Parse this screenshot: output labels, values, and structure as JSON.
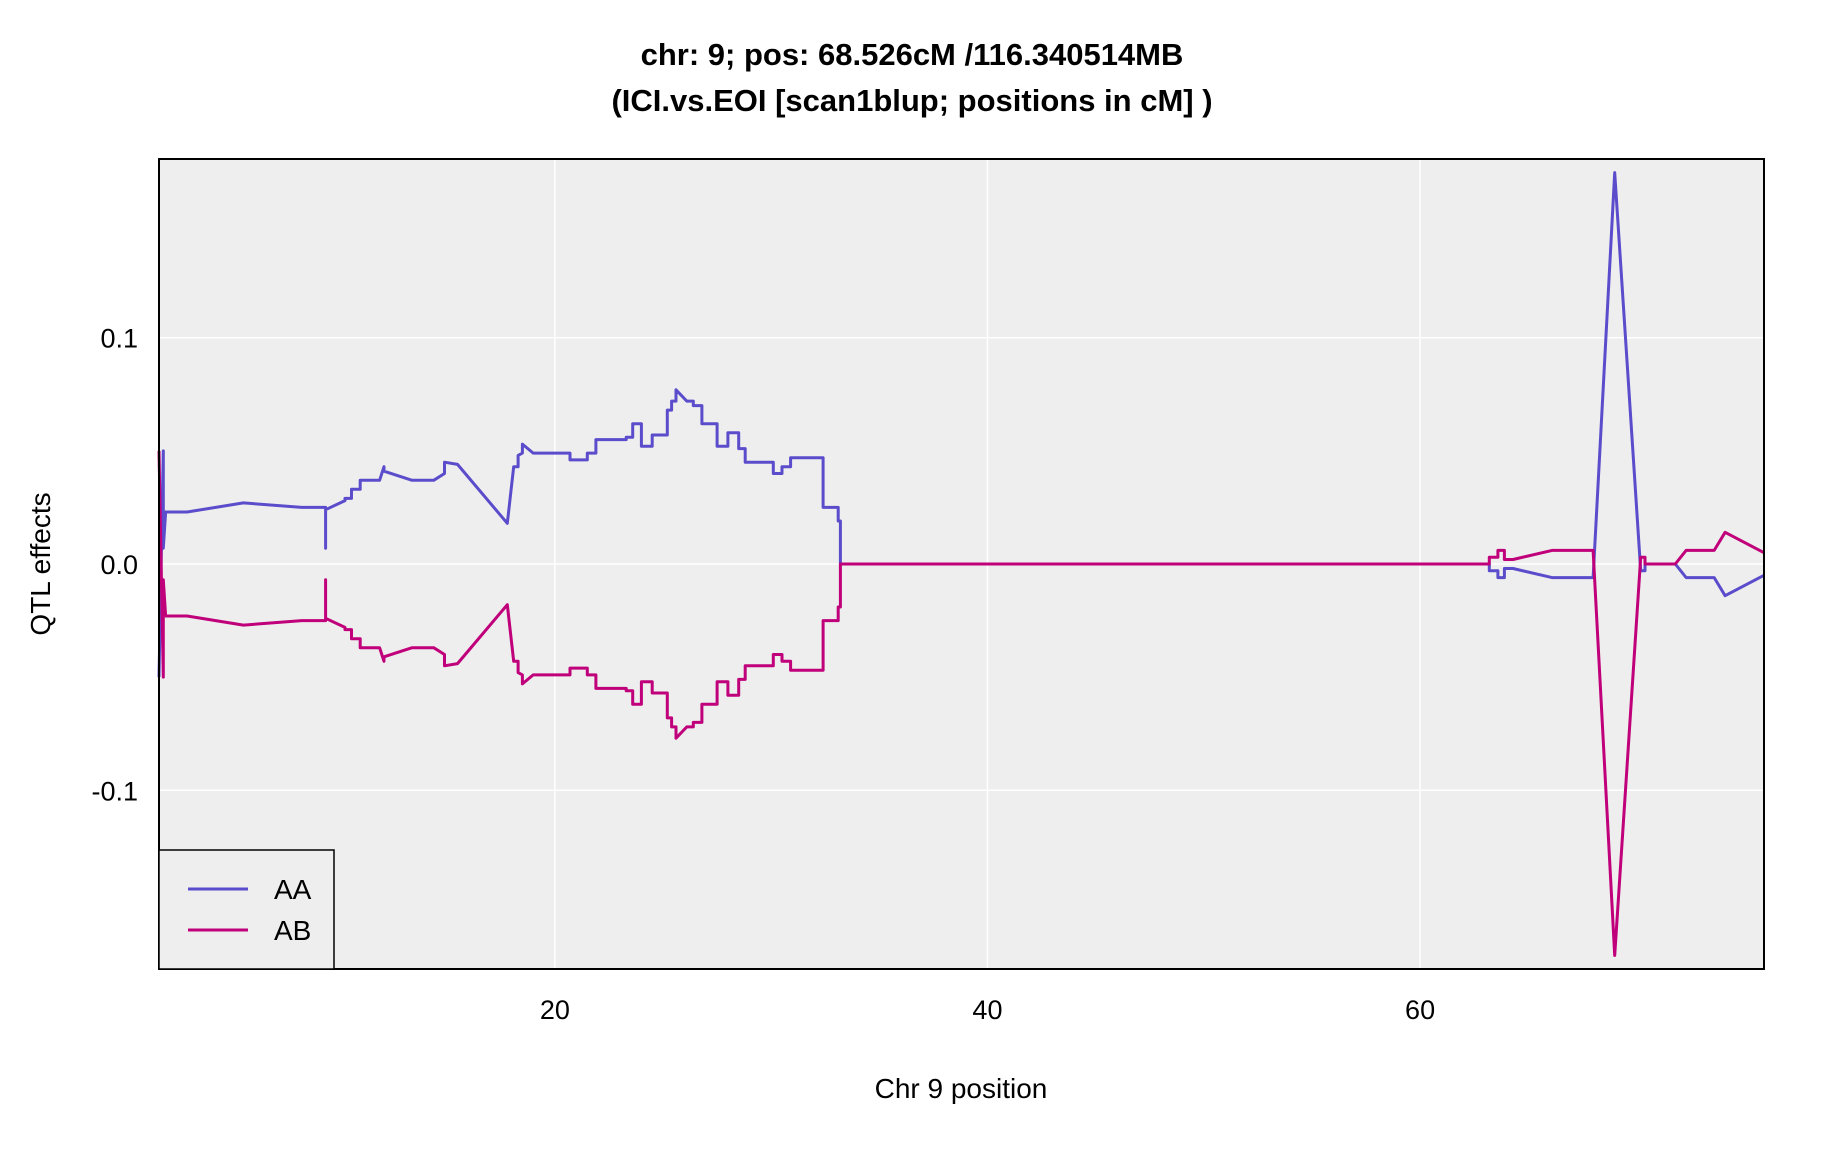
{
  "chart_data": {
    "type": "line",
    "title_line1": "chr: 9; pos: 68.526cM /116.340514MB",
    "title_line2": "(ICI.vs.EOI [scan1blup; positions in cM] )",
    "xlabel": "Chr 9 position",
    "ylabel": "QTL effects",
    "xlim": [
      1.7,
      75.9
    ],
    "ylim": [
      -0.179,
      0.179
    ],
    "x_ticks": [
      20,
      40,
      60
    ],
    "y_ticks": [
      -0.1,
      0.0,
      0.1
    ],
    "x_tick_labels": [
      "20",
      "40",
      "60"
    ],
    "y_tick_labels": [
      "-0.1",
      "0.0",
      "0.1"
    ],
    "grid": true,
    "background_color": "#eeeeee",
    "legend_position": "bottom-left",
    "series": [
      {
        "name": "AA",
        "color": "#5b4ccc",
        "x": [
          1.7,
          1.9,
          1.9,
          2.0,
          2.0,
          3.0,
          5.6,
          8.3,
          9.4,
          9.4,
          9.4,
          10.3,
          10.3,
          10.6,
          10.6,
          11.0,
          11.0,
          11.6,
          11.9,
          12.1,
          12.1,
          13.4,
          14.4,
          14.9,
          14.9,
          15.5,
          17.8,
          18.1,
          18.3,
          18.3,
          18.5,
          18.5,
          19.0,
          20.7,
          20.7,
          21.5,
          21.5,
          21.9,
          21.9,
          23.3,
          23.3,
          23.6,
          23.6,
          24.0,
          24.0,
          24.5,
          24.5,
          25.2,
          25.2,
          25.4,
          25.4,
          25.6,
          25.6,
          26.1,
          26.4,
          26.4,
          26.8,
          26.8,
          27.5,
          27.5,
          28.0,
          28.0,
          28.5,
          28.5,
          28.8,
          28.8,
          30.1,
          30.1,
          30.5,
          30.5,
          30.9,
          30.9,
          32.4,
          32.4,
          32.5,
          32.5,
          33.1,
          33.1,
          33.2,
          33.2,
          33.3,
          63.2,
          63.2,
          63.6,
          63.6,
          63.9,
          63.9,
          64.3,
          66.1,
          68.0,
          69.0,
          70.2,
          70.4,
          70.4,
          70.9,
          70.9,
          71.8,
          72.3,
          73.6,
          74.1,
          75.9
        ],
        "y": [
          -0.05,
          0.05,
          0.007,
          0.022,
          0.023,
          0.023,
          0.027,
          0.025,
          0.025,
          0.007,
          0.024,
          0.028,
          0.029,
          0.029,
          0.033,
          0.033,
          0.037,
          0.037,
          0.037,
          0.043,
          0.041,
          0.037,
          0.037,
          0.04,
          0.045,
          0.044,
          0.018,
          0.043,
          0.043,
          0.048,
          0.049,
          0.053,
          0.049,
          0.049,
          0.046,
          0.046,
          0.049,
          0.049,
          0.055,
          0.055,
          0.056,
          0.056,
          0.062,
          0.062,
          0.052,
          0.052,
          0.057,
          0.057,
          0.068,
          0.068,
          0.072,
          0.072,
          0.077,
          0.072,
          0.072,
          0.07,
          0.07,
          0.062,
          0.062,
          0.052,
          0.052,
          0.058,
          0.058,
          0.051,
          0.051,
          0.045,
          0.045,
          0.04,
          0.04,
          0.043,
          0.043,
          0.047,
          0.047,
          0.025,
          0.025,
          0.025,
          0.025,
          0.019,
          0.019,
          0.0,
          0.0,
          0.0,
          -0.003,
          -0.003,
          -0.006,
          -0.006,
          -0.002,
          -0.002,
          -0.006,
          -0.006,
          0.173,
          -0.003,
          -0.003,
          0.0,
          0.0,
          0.0,
          0.0,
          -0.006,
          -0.006,
          -0.014,
          -0.005
        ]
      },
      {
        "name": "AB",
        "color": "#c0007a",
        "x": [
          1.7,
          1.9,
          1.9,
          2.0,
          2.0,
          3.0,
          5.6,
          8.3,
          9.4,
          9.4,
          9.4,
          10.3,
          10.3,
          10.6,
          10.6,
          11.0,
          11.0,
          11.6,
          11.9,
          12.1,
          12.1,
          13.4,
          14.4,
          14.9,
          14.9,
          15.5,
          17.8,
          18.1,
          18.3,
          18.3,
          18.5,
          18.5,
          19.0,
          20.7,
          20.7,
          21.5,
          21.5,
          21.9,
          21.9,
          23.3,
          23.3,
          23.6,
          23.6,
          24.0,
          24.0,
          24.5,
          24.5,
          25.2,
          25.2,
          25.4,
          25.4,
          25.6,
          25.6,
          26.1,
          26.4,
          26.4,
          26.8,
          26.8,
          27.5,
          27.5,
          28.0,
          28.0,
          28.5,
          28.5,
          28.8,
          28.8,
          30.1,
          30.1,
          30.5,
          30.5,
          30.9,
          30.9,
          32.4,
          32.4,
          32.5,
          32.5,
          33.1,
          33.1,
          33.2,
          33.2,
          33.3,
          63.2,
          63.2,
          63.6,
          63.6,
          63.9,
          63.9,
          64.3,
          66.1,
          68.0,
          69.0,
          70.2,
          70.4,
          70.4,
          70.9,
          70.9,
          71.8,
          72.3,
          73.6,
          74.1,
          75.9
        ],
        "y": [
          0.05,
          -0.05,
          -0.007,
          -0.022,
          -0.023,
          -0.023,
          -0.027,
          -0.025,
          -0.025,
          -0.007,
          -0.024,
          -0.028,
          -0.029,
          -0.029,
          -0.033,
          -0.033,
          -0.037,
          -0.037,
          -0.037,
          -0.043,
          -0.041,
          -0.037,
          -0.037,
          -0.04,
          -0.045,
          -0.044,
          -0.018,
          -0.043,
          -0.043,
          -0.048,
          -0.049,
          -0.053,
          -0.049,
          -0.049,
          -0.046,
          -0.046,
          -0.049,
          -0.049,
          -0.055,
          -0.055,
          -0.056,
          -0.056,
          -0.062,
          -0.062,
          -0.052,
          -0.052,
          -0.057,
          -0.057,
          -0.068,
          -0.068,
          -0.072,
          -0.072,
          -0.077,
          -0.072,
          -0.072,
          -0.07,
          -0.07,
          -0.062,
          -0.062,
          -0.052,
          -0.052,
          -0.058,
          -0.058,
          -0.051,
          -0.051,
          -0.045,
          -0.045,
          -0.04,
          -0.04,
          -0.043,
          -0.043,
          -0.047,
          -0.047,
          -0.025,
          -0.025,
          -0.025,
          -0.025,
          -0.019,
          -0.019,
          0.0,
          0.0,
          0.0,
          0.003,
          0.003,
          0.006,
          0.006,
          0.002,
          0.002,
          0.006,
          0.006,
          -0.173,
          0.003,
          0.003,
          0.0,
          0.0,
          0.0,
          0.0,
          0.006,
          0.006,
          0.014,
          0.005
        ]
      }
    ]
  }
}
